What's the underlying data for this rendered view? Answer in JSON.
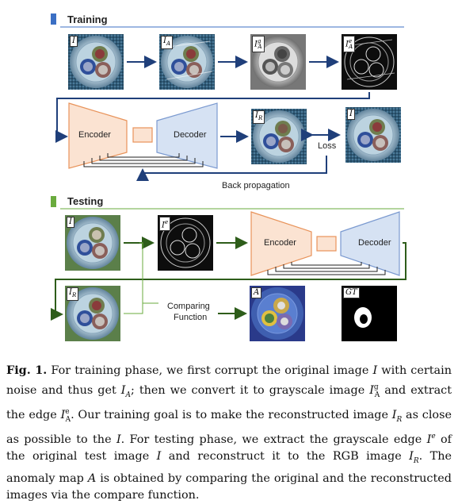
{
  "training": {
    "title": "Training",
    "tiles": [
      {
        "tag": "I"
      },
      {
        "tag": "I_A"
      },
      {
        "tag": "I_A^g"
      },
      {
        "tag": "I_A^e"
      },
      {
        "tag": "I_R"
      },
      {
        "tag": "I"
      }
    ],
    "encoder": "Encoder",
    "decoder": "Decoder",
    "loss": "Loss",
    "backprop": "Back propagation"
  },
  "testing": {
    "title": "Testing",
    "tiles": [
      {
        "tag": "I"
      },
      {
        "tag": "I^e"
      },
      {
        "tag": "I_R"
      },
      {
        "tag": "A"
      },
      {
        "tag": "GT"
      }
    ],
    "encoder": "Encoder",
    "decoder": "Decoder",
    "compare_line1": "Comparing",
    "compare_line2": "Function"
  },
  "caption": {
    "label": "Fig. 1.",
    "text": "For training phase, we first corrupt the original image I with certain noise and thus get I_A; then we convert it to grayscale image I_A^g and extract the edge I_A^e. Our training goal is to make the reconstructed image I_R as close as possible to the I. For testing phase, we extract the grayscale edge I^e of the original test image I and reconstruct it to the RGB image I_R. The anomaly map A is obtained by comparing the original and the reconstructed images via the compare function."
  },
  "colors": {
    "training_accent": "#3b6fc4",
    "testing_accent": "#6aab3e",
    "encoder_fill": "#fbe3d2",
    "encoder_stroke": "#e8935a",
    "decoder_fill": "#d6e2f3",
    "decoder_stroke": "#7b9ad0",
    "arrow_blue": "#1f3f7a",
    "arrow_green": "#2e5d1a"
  }
}
